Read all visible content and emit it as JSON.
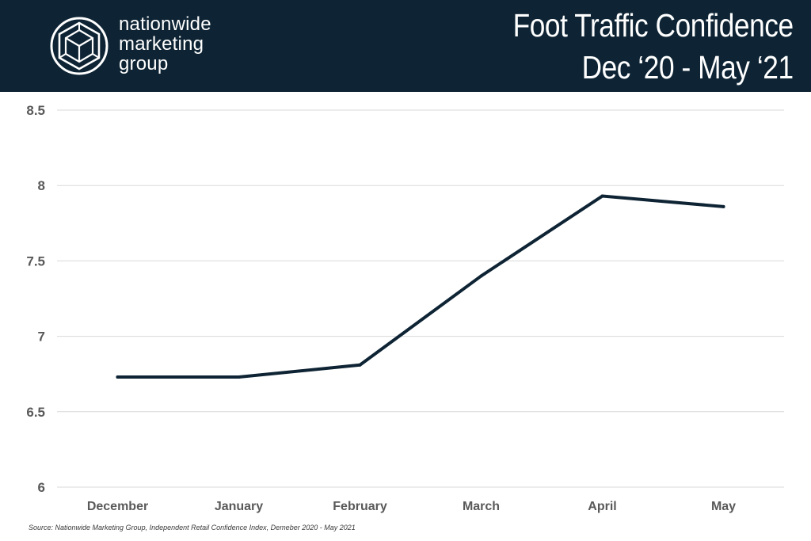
{
  "brand": {
    "line1": "nationwide",
    "line2": "marketing",
    "line3": "group",
    "logo_icon": "geometric-cube-circle-icon"
  },
  "header": {
    "title_line1": "Foot Traffic Confidence",
    "title_line2": "Dec ‘20 - May ‘21"
  },
  "colors": {
    "header_bg": "#0e2434",
    "line": "#0e2434",
    "grid": "#d9d9d9",
    "tick_text": "#595959"
  },
  "chart_data": {
    "type": "line",
    "categories": [
      "December",
      "January",
      "February",
      "March",
      "April",
      "May"
    ],
    "series": [
      {
        "values": [
          6.73,
          6.73,
          6.81,
          7.4,
          7.93,
          7.86
        ]
      }
    ],
    "yticks": [
      "6",
      "6.5",
      "7",
      "7.5",
      "8",
      "8.5"
    ],
    "ylim": [
      6,
      8.5
    ],
    "grid": true,
    "legend": "none"
  },
  "source": "Source: Nationwide Marketing Group, Independent Retail Confidence Index, Demeber 2020 - May 2021"
}
